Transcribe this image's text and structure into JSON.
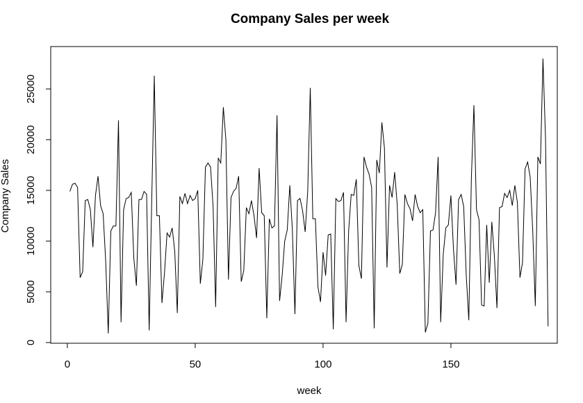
{
  "chart_data": {
    "type": "line",
    "title": "Company Sales per week",
    "x_label": "week",
    "y_label": "Company Sales",
    "x": [
      1,
      2,
      3,
      4,
      5,
      6,
      7,
      8,
      9,
      10,
      11,
      12,
      13,
      14,
      15,
      16,
      17,
      18,
      19,
      20,
      21,
      22,
      23,
      24,
      25,
      26,
      27,
      28,
      29,
      30,
      31,
      32,
      33,
      34,
      35,
      36,
      37,
      38,
      39,
      40,
      41,
      42,
      43,
      44,
      45,
      46,
      47,
      48,
      49,
      50,
      51,
      52,
      53,
      54,
      55,
      56,
      57,
      58,
      59,
      60,
      61,
      62,
      63,
      64,
      65,
      66,
      67,
      68,
      69,
      70,
      71,
      72,
      73,
      74,
      75,
      76,
      77,
      78,
      79,
      80,
      81,
      82,
      83,
      84,
      85,
      86,
      87,
      88,
      89,
      90,
      91,
      92,
      93,
      94,
      95,
      96,
      97,
      98,
      99,
      100,
      101,
      102,
      103,
      104,
      105,
      106,
      107,
      108,
      109,
      110,
      111,
      112,
      113,
      114,
      115,
      116,
      117,
      118,
      119,
      120,
      121,
      122,
      123,
      124,
      125,
      126,
      127,
      128,
      129,
      130,
      131,
      132,
      133,
      134,
      135,
      136,
      137,
      138,
      139,
      140,
      141,
      142,
      143,
      144,
      145,
      146,
      147,
      148,
      149,
      150,
      151,
      152,
      153,
      154,
      155,
      156,
      157,
      158,
      159,
      160,
      161,
      162,
      163,
      164,
      165,
      166,
      167,
      168,
      169,
      170,
      171,
      172,
      173,
      174,
      175,
      176,
      177,
      178,
      179,
      180,
      181,
      182,
      183,
      184,
      185,
      186,
      187,
      188
    ],
    "series": [
      {
        "name": "Company Sales",
        "color": "#000000",
        "values": [
          14900,
          15600,
          15700,
          15300,
          6400,
          7000,
          14000,
          14100,
          13100,
          9400,
          14500,
          16400,
          13500,
          12700,
          8000,
          900,
          11000,
          11500,
          11500,
          21900,
          2000,
          13100,
          14200,
          14300,
          14800,
          8300,
          5600,
          14100,
          14100,
          14900,
          14600,
          1200,
          14000,
          26300,
          12500,
          12500,
          3900,
          6900,
          10800,
          10400,
          11300,
          9000,
          2900,
          14400,
          13700,
          14700,
          13700,
          14500,
          14000,
          14200,
          15000,
          5800,
          8200,
          17300,
          17700,
          17300,
          13400,
          3500,
          18200,
          17700,
          23200,
          20000,
          6200,
          14300,
          14900,
          15200,
          16400,
          6000,
          7100,
          13300,
          12700,
          14000,
          12500,
          10300,
          17200,
          12800,
          12500,
          2400,
          12200,
          11300,
          11500,
          22400,
          4100,
          6600,
          10000,
          11100,
          15500,
          11100,
          2800,
          14000,
          14200,
          13000,
          10900,
          14900,
          25100,
          12200,
          12200,
          5500,
          4000,
          8900,
          6600,
          10600,
          10700,
          1300,
          14200,
          13900,
          14000,
          14800,
          2000,
          11000,
          14600,
          14500,
          16100,
          7600,
          6300,
          18300,
          17300,
          16600,
          15300,
          1400,
          18000,
          16700,
          21700,
          19200,
          7400,
          15500,
          14300,
          16800,
          13600,
          6800,
          7700,
          14600,
          13700,
          13200,
          12000,
          14600,
          13400,
          12800,
          13100,
          1000,
          1900,
          11000,
          11100,
          12800,
          18300,
          2000,
          8700,
          11300,
          11600,
          14500,
          9200,
          5700,
          14100,
          14600,
          13400,
          6600,
          2200,
          16200,
          23400,
          13100,
          12100,
          3700,
          3600,
          11600,
          5900,
          11900,
          8500,
          3400,
          13300,
          13400,
          14700,
          14300,
          15000,
          13500,
          15500,
          13800,
          6400,
          7900,
          17100,
          17800,
          16300,
          11000,
          3600,
          18300,
          17600,
          28000,
          20100,
          1600
        ]
      }
    ],
    "xlim": [
      -6.5,
      191.6
    ],
    "xticks": [
      0,
      50,
      100,
      150
    ],
    "ylim": [
      -70,
      29180
    ],
    "yticks": [
      0,
      5000,
      10000,
      15000,
      20000,
      25000
    ]
  }
}
